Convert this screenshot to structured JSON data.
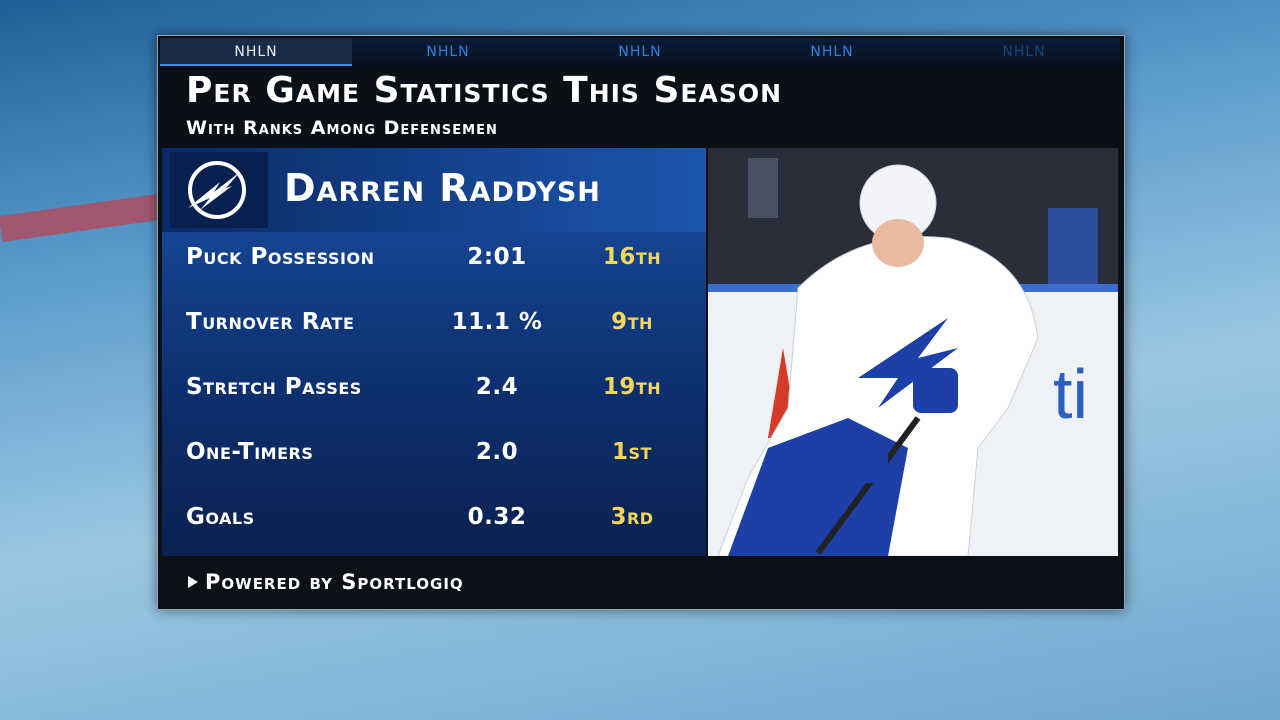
{
  "network_tabs": [
    "NHLN",
    "NHLN",
    "NHLN",
    "NHLN",
    "NHLN"
  ],
  "header": {
    "title": "Per Game Statistics This Season",
    "subtitle": "With Ranks Among Defensemen"
  },
  "player": {
    "name": "Darren Raddysh"
  },
  "table": {
    "rows": [
      [
        "Puck Possession",
        "2:01",
        "16th"
      ],
      [
        "Turnover Rate",
        "11.1 %",
        "9th"
      ],
      [
        "Stretch Passes",
        "2.4",
        "19th"
      ],
      [
        "One-Timers",
        "2.0",
        "1st"
      ],
      [
        "Goals",
        "0.32",
        "3rd"
      ]
    ]
  },
  "footer": {
    "text": "Powered by Sportlogiq"
  }
}
